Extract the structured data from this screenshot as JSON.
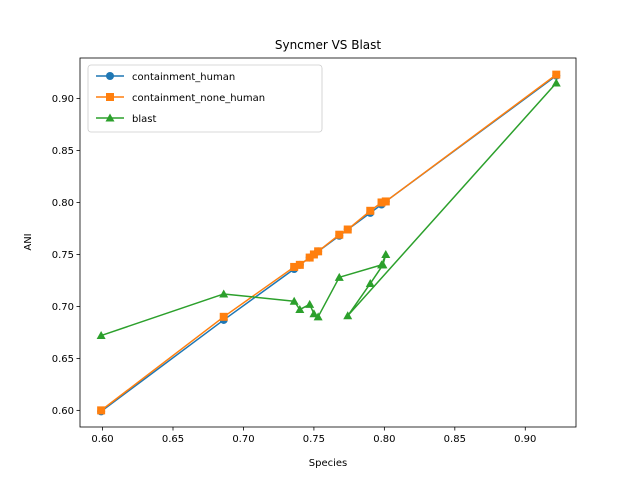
{
  "chart_data": {
    "type": "line",
    "title": "Syncmer VS Blast",
    "xlabel": "Species",
    "ylabel": "ANI",
    "xlim": [
      0.584,
      0.936
    ],
    "ylim": [
      0.584,
      0.939
    ],
    "xticks": [
      0.6,
      0.65,
      0.7,
      0.75,
      0.8,
      0.85,
      0.9
    ],
    "xtick_labels": [
      "0.60",
      "0.65",
      "0.70",
      "0.75",
      "0.80",
      "0.85",
      "0.90"
    ],
    "yticks": [
      0.6,
      0.65,
      0.7,
      0.75,
      0.8,
      0.85,
      0.9
    ],
    "ytick_labels": [
      "0.60",
      "0.65",
      "0.70",
      "0.75",
      "0.80",
      "0.85",
      "0.90"
    ],
    "grid": false,
    "legend_position": "top-left",
    "series": [
      {
        "name": "containment_human",
        "color": "#1f77b4",
        "marker": "circle",
        "points": [
          [
            0.599,
            0.599
          ],
          [
            0.686,
            0.687
          ],
          [
            0.736,
            0.736
          ],
          [
            0.74,
            0.74
          ],
          [
            0.747,
            0.747
          ],
          [
            0.75,
            0.75
          ],
          [
            0.753,
            0.753
          ],
          [
            0.768,
            0.768
          ],
          [
            0.774,
            0.774
          ],
          [
            0.79,
            0.79
          ],
          [
            0.798,
            0.798
          ],
          [
            0.801,
            0.801
          ],
          [
            0.922,
            0.922
          ]
        ]
      },
      {
        "name": "containment_none_human",
        "color": "#ff7f0e",
        "marker": "square",
        "points": [
          [
            0.599,
            0.6
          ],
          [
            0.686,
            0.69
          ],
          [
            0.736,
            0.738
          ],
          [
            0.74,
            0.74
          ],
          [
            0.747,
            0.747
          ],
          [
            0.75,
            0.75
          ],
          [
            0.753,
            0.753
          ],
          [
            0.768,
            0.769
          ],
          [
            0.774,
            0.774
          ],
          [
            0.79,
            0.792
          ],
          [
            0.798,
            0.8
          ],
          [
            0.801,
            0.801
          ],
          [
            0.922,
            0.923
          ]
        ]
      },
      {
        "name": "blast",
        "color": "#2ca02c",
        "marker": "triangle",
        "points": [
          [
            0.599,
            0.672
          ],
          [
            0.686,
            0.712
          ],
          [
            0.736,
            0.705
          ],
          [
            0.74,
            0.697
          ],
          [
            0.747,
            0.702
          ],
          [
            0.75,
            0.693
          ],
          [
            0.753,
            0.69
          ],
          [
            0.768,
            0.728
          ],
          [
            0.798,
            0.74
          ],
          [
            0.801,
            0.75
          ],
          [
            0.799,
            0.74
          ],
          [
            0.79,
            0.722
          ],
          [
            0.774,
            0.691
          ],
          [
            0.922,
            0.915
          ]
        ]
      }
    ]
  }
}
